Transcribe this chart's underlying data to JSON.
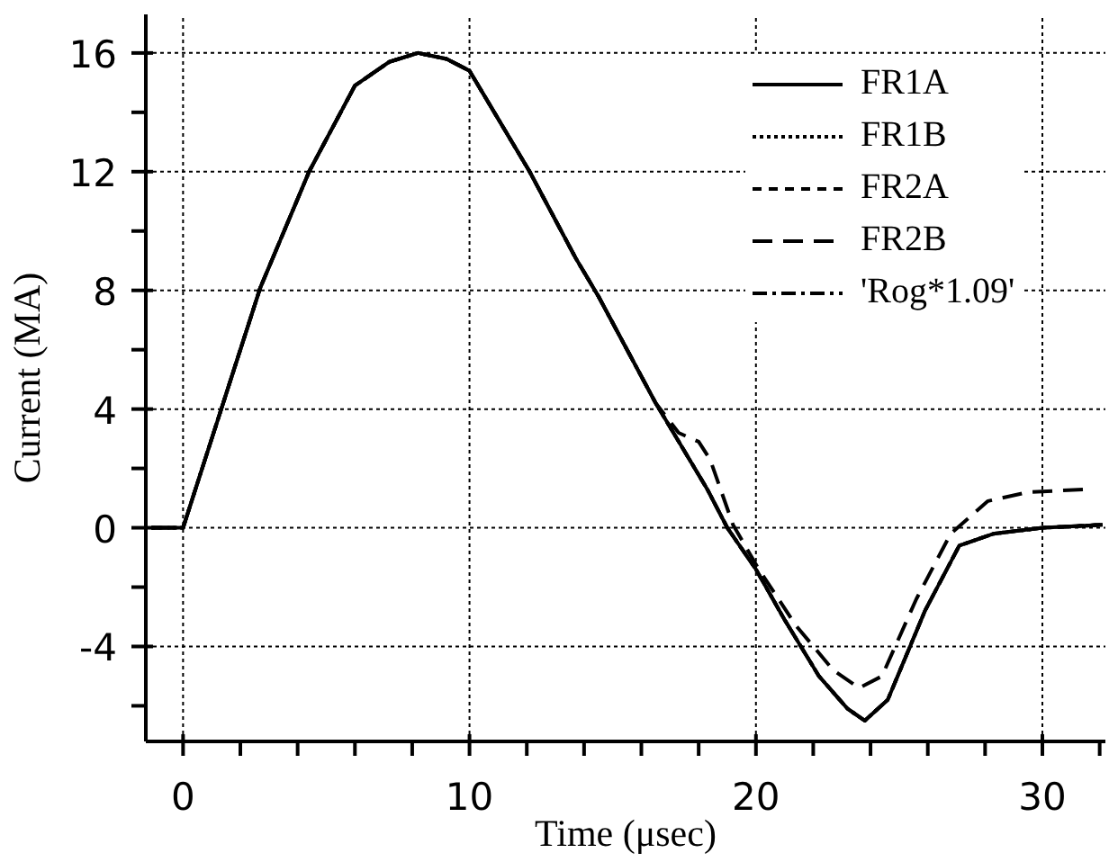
{
  "chart_data": {
    "type": "line",
    "xlabel": "Time (μsec)",
    "ylabel": "Current (MA)",
    "xlim": [
      -1.3,
      32.2
    ],
    "ylim": [
      -7.2,
      17.3
    ],
    "xticks": [
      0,
      {
        "value": 2,
        "label": null
      },
      {
        "value": 4,
        "label": null
      },
      {
        "value": 6,
        "label": null
      },
      {
        "value": 8,
        "label": null
      },
      10,
      {
        "value": 12,
        "label": null
      },
      {
        "value": 14,
        "label": null
      },
      {
        "value": 16,
        "label": null
      },
      {
        "value": 18,
        "label": null
      },
      20,
      {
        "value": 22,
        "label": null
      },
      {
        "value": 24,
        "label": null
      },
      {
        "value": 26,
        "label": null
      },
      {
        "value": 28,
        "label": null
      },
      30,
      {
        "value": 32,
        "label": null
      }
    ],
    "yticks": [
      {
        "value": -6,
        "label": null
      },
      -4,
      {
        "value": -2,
        "label": null
      },
      0,
      {
        "value": 2,
        "label": null
      },
      4,
      {
        "value": 6,
        "label": null
      },
      8,
      {
        "value": 10,
        "label": null
      },
      12,
      {
        "value": 14,
        "label": null
      },
      16
    ],
    "grid": true,
    "legend": "top right",
    "marker": "none",
    "series": [
      {
        "name": "FR1A",
        "color": "#000000",
        "line_style": "solid",
        "x": [
          -1.1,
          0,
          1.4,
          2.7,
          4.4,
          6.0,
          7.2,
          8.2,
          9.2,
          10,
          12.1,
          13.7,
          14.5,
          16.5,
          18.3,
          19.0,
          20.0,
          21,
          22.2,
          23.2,
          23.8,
          24.6,
          25.9,
          27.1,
          28.3,
          30,
          32.1
        ],
        "values": [
          0,
          0,
          4.2,
          8.1,
          12,
          14.9,
          15.7,
          16,
          15.8,
          15.4,
          12,
          9.1,
          7.8,
          4.2,
          1.3,
          0,
          -1.4,
          -3.1,
          -5.0,
          -6.1,
          -6.5,
          -5.8,
          -2.8,
          -0.6,
          -0.2,
          0,
          0.1
        ]
      },
      {
        "name": "FR1B",
        "color": "#000000",
        "line_style": "dotted",
        "x": [
          -1.1,
          0,
          1.4,
          2.7,
          4.4,
          6.0,
          7.2,
          8.2,
          9.2,
          10,
          12.1,
          13.7,
          14.5,
          16.5,
          18.3,
          19.0,
          20.0,
          21,
          22.2,
          23.2,
          23.8,
          24.6,
          25.9,
          27.1,
          28.3,
          30,
          32.1
        ],
        "values": [
          0,
          0,
          4.2,
          8.1,
          12,
          14.9,
          15.7,
          16,
          15.8,
          15.4,
          12,
          9.1,
          7.8,
          4.2,
          1.3,
          0,
          -1.4,
          -3.1,
          -5.0,
          -6.1,
          -6.5,
          -5.8,
          -2.8,
          -0.6,
          -0.2,
          0,
          0.1
        ]
      },
      {
        "name": "FR2A",
        "color": "#000000",
        "line_style": "dashed",
        "x": [
          -1.1,
          0,
          1.4,
          2.7,
          4.4,
          6.0,
          7.2,
          8.2,
          9.2,
          10,
          12.1,
          13.7,
          14.5,
          16.5,
          18.3,
          19.0,
          20.0,
          21,
          22.2,
          23.2,
          23.8,
          24.6,
          25.9,
          27.1,
          28.3,
          30,
          32.1
        ],
        "values": [
          0,
          0,
          4.2,
          8.1,
          12,
          14.9,
          15.7,
          16,
          15.8,
          15.4,
          12,
          9.1,
          7.8,
          4.2,
          1.3,
          0,
          -1.4,
          -3.1,
          -5.0,
          -6.1,
          -6.5,
          -5.8,
          -2.8,
          -0.6,
          -0.2,
          0,
          0.1
        ]
      },
      {
        "name": "FR2B",
        "color": "#000000",
        "line_style": "longdash",
        "x": [
          -1.1,
          0,
          1.4,
          2.7,
          4.4,
          6.0,
          7.2,
          8.2,
          9.2,
          10,
          12.1,
          13.7,
          14.5,
          16.5,
          17.3,
          18.0,
          18.4,
          19.2,
          20.1,
          21.4,
          22.7,
          23.6,
          24.4,
          25.6,
          26.8,
          28.1,
          29.5,
          31.6
        ],
        "values": [
          0,
          0,
          4.2,
          8.1,
          12,
          14.9,
          15.7,
          16,
          15.8,
          15.4,
          12,
          9.1,
          7.8,
          4.2,
          3.2,
          2.9,
          2.3,
          0.1,
          -1.4,
          -3.3,
          -4.8,
          -5.4,
          -5.0,
          -2.4,
          -0.2,
          0.9,
          1.2,
          1.3
        ]
      },
      {
        "name": "'Rog*1.09'",
        "color": "#000000",
        "line_style": "dashdot",
        "x": [
          -1.1,
          0,
          1.4,
          2.7,
          4.4,
          6.0,
          7.2,
          8.2,
          9.2,
          10,
          12.1,
          13.7,
          14.5,
          16.5,
          18.3,
          19.0,
          20.0,
          21,
          22.2,
          23.2,
          23.8,
          24.6,
          25.9,
          27.1,
          28.3,
          30,
          32.1
        ],
        "values": [
          0,
          0,
          4.2,
          8.1,
          12,
          14.9,
          15.7,
          16,
          15.8,
          15.4,
          12,
          9.1,
          7.8,
          4.2,
          1.3,
          0,
          -1.4,
          -3.1,
          -5.0,
          -6.1,
          -6.5,
          -5.8,
          -2.8,
          -0.6,
          -0.2,
          0,
          0.1
        ]
      }
    ]
  }
}
